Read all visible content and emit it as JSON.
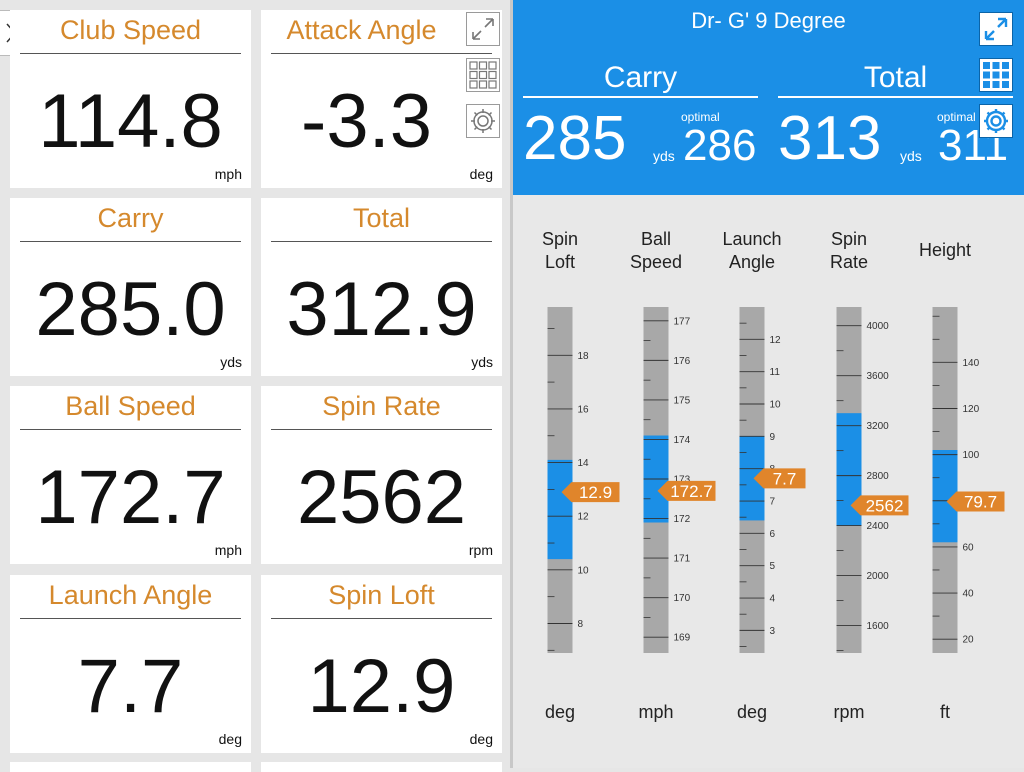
{
  "left_panel": {
    "tiles": [
      {
        "title": "Club Speed",
        "value": "114.8",
        "unit": "mph"
      },
      {
        "title": "Attack Angle",
        "value": "-3.3",
        "unit": "deg"
      },
      {
        "title": "Carry",
        "value": "285.0",
        "unit": "yds"
      },
      {
        "title": "Total",
        "value": "312.9",
        "unit": "yds"
      },
      {
        "title": "Ball Speed",
        "value": "172.7",
        "unit": "mph"
      },
      {
        "title": "Spin Rate",
        "value": "2562",
        "unit": "rpm"
      },
      {
        "title": "Launch Angle",
        "value": "7.7",
        "unit": "deg"
      },
      {
        "title": "Spin Loft",
        "value": "12.9",
        "unit": "deg"
      }
    ]
  },
  "header": {
    "club": "Dr- G' 9 Degree",
    "carry": {
      "label": "Carry",
      "value": "285",
      "unit": "yds",
      "optimal_label": "optimal",
      "optimal_value": "286"
    },
    "total": {
      "label": "Total",
      "value": "313",
      "unit": "yds",
      "optimal_label": "optimal",
      "optimal_value": "311"
    }
  },
  "icons": {
    "expand": "expand-arrows-icon",
    "grid": "grid-icon",
    "settings": "gear-icon",
    "drawer": "chevron-right-icon"
  },
  "colors": {
    "accent_orange": "#e0852b",
    "header_blue": "#1b8fe6",
    "gauge_gray": "#a8a8a8",
    "gauge_blue": "#1b8fe6"
  },
  "gauges": [
    {
      "label_line1": "Spin",
      "label_line2": "Loft",
      "unit": "deg",
      "min": 6.9,
      "max": 19.8,
      "band": [
        10.4,
        14.1
      ],
      "value": 12.9,
      "value_label": "12.9",
      "ticks": [
        8,
        10,
        12,
        14,
        16,
        18
      ],
      "minor": [
        7,
        9,
        11,
        13,
        15,
        17,
        19
      ]
    },
    {
      "label_line1": "Ball",
      "label_line2": "Speed",
      "unit": "mph",
      "min": 168.6,
      "max": 177.35,
      "band": [
        171.9,
        174.1
      ],
      "value": 172.7,
      "value_label": "172.7",
      "ticks": [
        169,
        170,
        171,
        172,
        173,
        174,
        175,
        176,
        177
      ],
      "minor": [
        169.5,
        170.5,
        171.5,
        172.5,
        173.5,
        174.5,
        175.5,
        176.5
      ]
    },
    {
      "label_line1": "Launch",
      "label_line2": "Angle",
      "unit": "deg",
      "min": 2.3,
      "max": 13.0,
      "band": [
        6.4,
        9.0
      ],
      "value": 7.7,
      "value_label": "7.7",
      "ticks": [
        3,
        4,
        5,
        6,
        7,
        8,
        9,
        10,
        11,
        12
      ],
      "minor": [
        2.5,
        3.5,
        4.5,
        5.5,
        6.5,
        7.5,
        8.5,
        9.5,
        10.5,
        11.5,
        12.5
      ]
    },
    {
      "label_line1": "Spin",
      "label_line2": "Rate",
      "unit": "rpm",
      "min": 1380,
      "max": 4150,
      "band": [
        2400,
        3300
      ],
      "value": 2562,
      "value_label": "2562",
      "ticks": [
        1600,
        2000,
        2400,
        2800,
        3200,
        3600,
        4000
      ],
      "minor": [
        1400,
        1800,
        2200,
        2600,
        3000,
        3400,
        3800
      ]
    },
    {
      "label_line1": "Height",
      "label_line2": "",
      "unit": "ft",
      "min": 14,
      "max": 164,
      "band": [
        62,
        102
      ],
      "value": 79.7,
      "value_label": "79.7",
      "ticks": [
        20,
        40,
        60,
        80,
        100,
        120,
        140
      ],
      "minor": [
        30,
        50,
        70,
        90,
        110,
        130,
        150,
        160
      ]
    }
  ]
}
